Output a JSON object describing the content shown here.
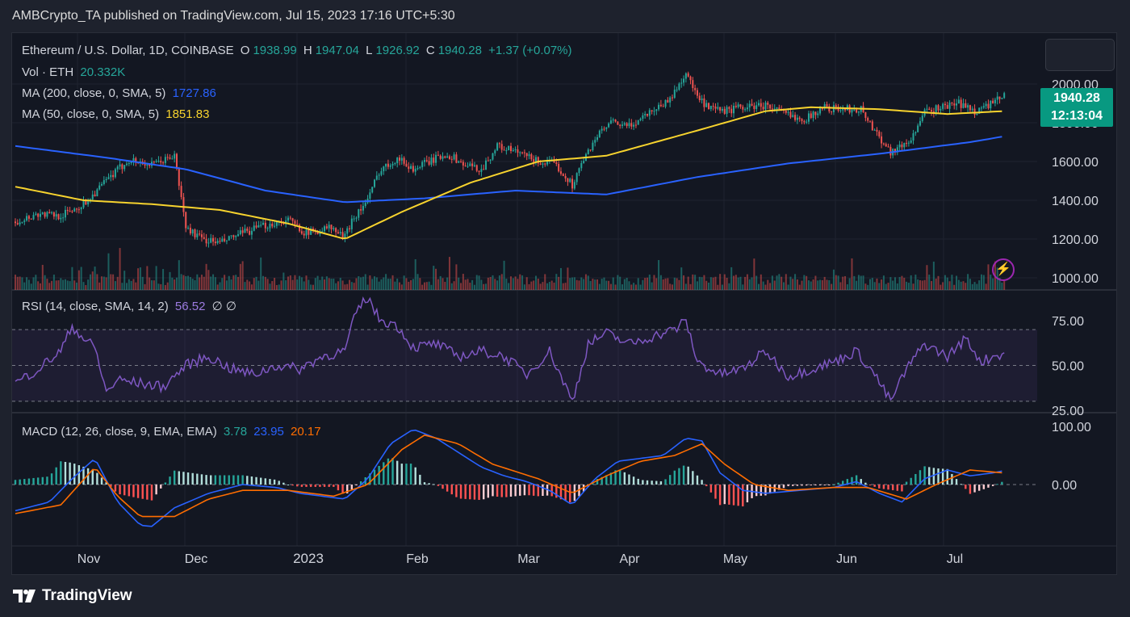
{
  "header": {
    "published": "AMBCrypto_TA published on TradingView.com, Jul 15, 2023 17:16 UTC+5:30"
  },
  "legend": {
    "symbol": "Ethereum / U.S. Dollar, 1D, COINBASE",
    "o_label": "O",
    "o_value": "1938.99",
    "h_label": "H",
    "h_value": "1947.04",
    "l_label": "L",
    "l_value": "1926.92",
    "c_label": "C",
    "c_value": "1940.28",
    "change": "+1.37 (+0.07%)",
    "vol_label": "Vol · ETH",
    "vol_value": "20.332K",
    "ma200_label": "MA (200, close, 0, SMA, 5)",
    "ma200_value": "1727.86",
    "ma50_label": "MA (50, close, 0, SMA, 5)",
    "ma50_value": "1851.83",
    "rsi_label": "RSI (14, close, SMA, 14, 2)",
    "rsi_value": "56.52",
    "rsi_extra": "∅  ∅",
    "macd_label": "MACD (12, 26, close, 9, EMA, EMA)",
    "macd_hist": "3.78",
    "macd_line": "23.95",
    "macd_signal": "20.17"
  },
  "price_tag": {
    "price": "1940.28",
    "countdown": "12:13:04"
  },
  "footer": {
    "brand": "TradingView"
  },
  "icons": {
    "flash": "flash-icon",
    "logo": "tradingview-logo-icon"
  },
  "colors": {
    "up": "#26a69a",
    "down": "#ef5350",
    "ma200": "#2962ff",
    "ma50": "#f7d32e",
    "rsi": "#7e57c2",
    "macd": "#2962ff",
    "signal": "#ff6d00",
    "bg": "#131722"
  },
  "chart_data": [
    {
      "type": "candlestick",
      "title": "Ethereum / U.S. Dollar, 1D, COINBASE",
      "x_ticks": [
        "Nov",
        "Dec",
        "2023",
        "Feb",
        "Mar",
        "Apr",
        "May",
        "Jun",
        "Jul"
      ],
      "y_ticks": [
        "2000.00",
        "1800.00",
        "1600.00",
        "1400.00",
        "1200.00",
        "1000.00"
      ],
      "ylim": [
        1000,
        2000
      ],
      "close_series_approx": [
        [
          0,
          1290
        ],
        [
          10,
          1330
        ],
        [
          20,
          1320
        ],
        [
          30,
          1380
        ],
        [
          40,
          1500
        ],
        [
          50,
          1610
        ],
        [
          60,
          1580
        ],
        [
          70,
          1630
        ],
        [
          75,
          1260
        ],
        [
          82,
          1200
        ],
        [
          90,
          1180
        ],
        [
          100,
          1230
        ],
        [
          110,
          1270
        ],
        [
          120,
          1300
        ],
        [
          128,
          1230
        ],
        [
          138,
          1260
        ],
        [
          145,
          1210
        ],
        [
          148,
          1300
        ],
        [
          155,
          1400
        ],
        [
          160,
          1550
        ],
        [
          168,
          1620
        ],
        [
          175,
          1560
        ],
        [
          182,
          1600
        ],
        [
          190,
          1640
        ],
        [
          198,
          1580
        ],
        [
          205,
          1560
        ],
        [
          212,
          1680
        ],
        [
          220,
          1650
        ],
        [
          230,
          1600
        ],
        [
          238,
          1580
        ],
        [
          245,
          1480
        ],
        [
          248,
          1560
        ],
        [
          255,
          1720
        ],
        [
          262,
          1800
        ],
        [
          270,
          1780
        ],
        [
          278,
          1850
        ],
        [
          288,
          1920
        ],
        [
          295,
          2060
        ],
        [
          300,
          1930
        ],
        [
          305,
          1870
        ],
        [
          312,
          1860
        ],
        [
          320,
          1880
        ],
        [
          330,
          1890
        ],
        [
          340,
          1840
        ],
        [
          348,
          1820
        ],
        [
          355,
          1880
        ],
        [
          362,
          1870
        ],
        [
          372,
          1870
        ],
        [
          378,
          1760
        ],
        [
          385,
          1650
        ],
        [
          393,
          1700
        ],
        [
          400,
          1850
        ],
        [
          407,
          1880
        ],
        [
          415,
          1900
        ],
        [
          422,
          1860
        ],
        [
          430,
          1900
        ],
        [
          435,
          1940
        ]
      ],
      "ma200_series_approx": [
        [
          0,
          1680
        ],
        [
          40,
          1620
        ],
        [
          75,
          1560
        ],
        [
          110,
          1450
        ],
        [
          145,
          1390
        ],
        [
          180,
          1410
        ],
        [
          220,
          1450
        ],
        [
          260,
          1430
        ],
        [
          300,
          1520
        ],
        [
          340,
          1590
        ],
        [
          380,
          1640
        ],
        [
          420,
          1700
        ],
        [
          435,
          1730
        ]
      ],
      "ma50_series_approx": [
        [
          0,
          1470
        ],
        [
          30,
          1400
        ],
        [
          60,
          1380
        ],
        [
          90,
          1350
        ],
        [
          120,
          1280
        ],
        [
          145,
          1200
        ],
        [
          170,
          1340
        ],
        [
          200,
          1490
        ],
        [
          230,
          1600
        ],
        [
          260,
          1630
        ],
        [
          300,
          1760
        ],
        [
          330,
          1860
        ],
        [
          350,
          1880
        ],
        [
          380,
          1870
        ],
        [
          410,
          1845
        ],
        [
          435,
          1860
        ]
      ],
      "last": {
        "open": 1938.99,
        "high": 1947.04,
        "low": 1926.92,
        "close": 1940.28
      },
      "series": [
        {
          "name": "MA (200, close, 0, SMA, 5)",
          "last_value": 1727.86
        },
        {
          "name": "MA (50, close, 0, SMA, 5)",
          "last_value": 1851.83
        },
        {
          "name": "Vol · ETH",
          "last_value": "20.332K"
        }
      ]
    },
    {
      "type": "line",
      "title": "RSI (14, close, SMA, 14, 2)",
      "y_ticks": [
        "75.00",
        "50.00",
        "25.00"
      ],
      "ylim": [
        20,
        90
      ],
      "band": [
        30,
        70
      ],
      "rsi_series_approx": [
        [
          0,
          40
        ],
        [
          10,
          48
        ],
        [
          20,
          58
        ],
        [
          25,
          72
        ],
        [
          30,
          65
        ],
        [
          35,
          60
        ],
        [
          40,
          35
        ],
        [
          45,
          42
        ],
        [
          55,
          40
        ],
        [
          65,
          38
        ],
        [
          75,
          50
        ],
        [
          85,
          55
        ],
        [
          95,
          48
        ],
        [
          105,
          45
        ],
        [
          115,
          50
        ],
        [
          125,
          48
        ],
        [
          135,
          55
        ],
        [
          145,
          58
        ],
        [
          150,
          80
        ],
        [
          155,
          88
        ],
        [
          160,
          76
        ],
        [
          168,
          72
        ],
        [
          175,
          60
        ],
        [
          185,
          62
        ],
        [
          195,
          55
        ],
        [
          205,
          58
        ],
        [
          215,
          55
        ],
        [
          225,
          45
        ],
        [
          235,
          58
        ],
        [
          245,
          30
        ],
        [
          252,
          62
        ],
        [
          260,
          68
        ],
        [
          270,
          62
        ],
        [
          280,
          66
        ],
        [
          290,
          70
        ],
        [
          295,
          75
        ],
        [
          300,
          52
        ],
        [
          310,
          45
        ],
        [
          320,
          48
        ],
        [
          330,
          58
        ],
        [
          340,
          44
        ],
        [
          350,
          48
        ],
        [
          360,
          52
        ],
        [
          370,
          58
        ],
        [
          378,
          45
        ],
        [
          385,
          30
        ],
        [
          392,
          48
        ],
        [
          400,
          62
        ],
        [
          410,
          55
        ],
        [
          418,
          65
        ],
        [
          425,
          52
        ],
        [
          430,
          55
        ],
        [
          435,
          57
        ]
      ],
      "series": [
        {
          "name": "RSI (14, close, SMA, 14, 2)",
          "last_value": 56.52
        }
      ]
    },
    {
      "type": "line",
      "title": "MACD (12, 26, close, 9, EMA, EMA)",
      "y_ticks": [
        "100.00",
        "0.00"
      ],
      "ylim": [
        -90,
        110
      ],
      "macd_series_approx": [
        [
          0,
          -45
        ],
        [
          15,
          -30
        ],
        [
          25,
          10
        ],
        [
          35,
          45
        ],
        [
          45,
          -30
        ],
        [
          55,
          -70
        ],
        [
          60,
          -72
        ],
        [
          70,
          -40
        ],
        [
          85,
          -15
        ],
        [
          100,
          0
        ],
        [
          115,
          -5
        ],
        [
          125,
          -15
        ],
        [
          135,
          -20
        ],
        [
          145,
          -25
        ],
        [
          155,
          10
        ],
        [
          165,
          70
        ],
        [
          175,
          95
        ],
        [
          185,
          80
        ],
        [
          195,
          55
        ],
        [
          205,
          30
        ],
        [
          215,
          15
        ],
        [
          225,
          5
        ],
        [
          235,
          -10
        ],
        [
          245,
          -35
        ],
        [
          255,
          10
        ],
        [
          265,
          40
        ],
        [
          275,
          45
        ],
        [
          285,
          50
        ],
        [
          295,
          80
        ],
        [
          302,
          75
        ],
        [
          310,
          20
        ],
        [
          320,
          -10
        ],
        [
          330,
          -15
        ],
        [
          345,
          -10
        ],
        [
          360,
          -5
        ],
        [
          370,
          5
        ],
        [
          380,
          -15
        ],
        [
          390,
          -30
        ],
        [
          400,
          10
        ],
        [
          410,
          25
        ],
        [
          420,
          15
        ],
        [
          430,
          20
        ],
        [
          435,
          24
        ]
      ],
      "signal_series_approx": [
        [
          0,
          -50
        ],
        [
          20,
          -35
        ],
        [
          35,
          30
        ],
        [
          45,
          -20
        ],
        [
          55,
          -55
        ],
        [
          70,
          -55
        ],
        [
          85,
          -25
        ],
        [
          100,
          -10
        ],
        [
          120,
          -10
        ],
        [
          140,
          -20
        ],
        [
          155,
          0
        ],
        [
          170,
          60
        ],
        [
          180,
          85
        ],
        [
          195,
          70
        ],
        [
          210,
          35
        ],
        [
          230,
          10
        ],
        [
          245,
          -15
        ],
        [
          260,
          15
        ],
        [
          275,
          40
        ],
        [
          290,
          50
        ],
        [
          302,
          70
        ],
        [
          312,
          35
        ],
        [
          325,
          0
        ],
        [
          340,
          -10
        ],
        [
          360,
          -5
        ],
        [
          375,
          -5
        ],
        [
          392,
          -25
        ],
        [
          405,
          0
        ],
        [
          420,
          25
        ],
        [
          435,
          20
        ]
      ],
      "hist_last": 3.78,
      "series": [
        {
          "name": "MACD",
          "last_value": 23.95
        },
        {
          "name": "Signal",
          "last_value": 20.17
        }
      ]
    }
  ]
}
